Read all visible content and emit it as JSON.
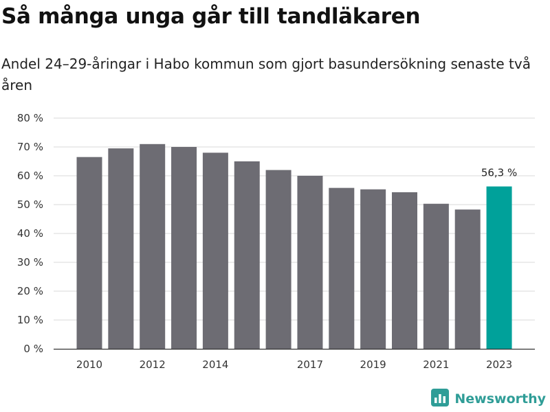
{
  "header": {
    "title": "Så många unga går till tandläkaren",
    "subtitle": "Andel 24–29-åringar i Habo kommun som gjort basundersökning senaste två åren"
  },
  "colors": {
    "bar": "#6d6c73",
    "highlight": "#00a19a",
    "grid": "#d9d9d9",
    "axis": "#333333",
    "brand": "#2f9d97"
  },
  "brand": {
    "name": "Newsworthy",
    "icon": "bar-chart-logo-icon"
  },
  "chart_data": {
    "type": "bar",
    "title": "Så många unga går till tandläkaren",
    "subtitle": "Andel 24–29-åringar i Habo kommun som gjort basundersökning senaste två åren",
    "categories": [
      "2010",
      "2011",
      "2012",
      "2013",
      "2014",
      "2015",
      "2016",
      "2017",
      "2018",
      "2019",
      "2020",
      "2021",
      "2022",
      "2023"
    ],
    "x_tick_labels": [
      "2010",
      "",
      "2012",
      "",
      "2014",
      "",
      "",
      "2017",
      "",
      "2019",
      "",
      "2021",
      "",
      "2023"
    ],
    "values": [
      66.5,
      69.5,
      71,
      70,
      68,
      65,
      62,
      60,
      55.8,
      55.3,
      54.3,
      50.3,
      48.3,
      56.3
    ],
    "highlight_index": 13,
    "data_labels": [
      {
        "index": 13,
        "text": "56,3 %"
      }
    ],
    "ylim": [
      0,
      80
    ],
    "y_ticks": [
      0,
      10,
      20,
      30,
      40,
      50,
      60,
      70,
      80
    ],
    "y_tick_suffix": " %",
    "grid": true,
    "xlabel": "",
    "ylabel": ""
  }
}
